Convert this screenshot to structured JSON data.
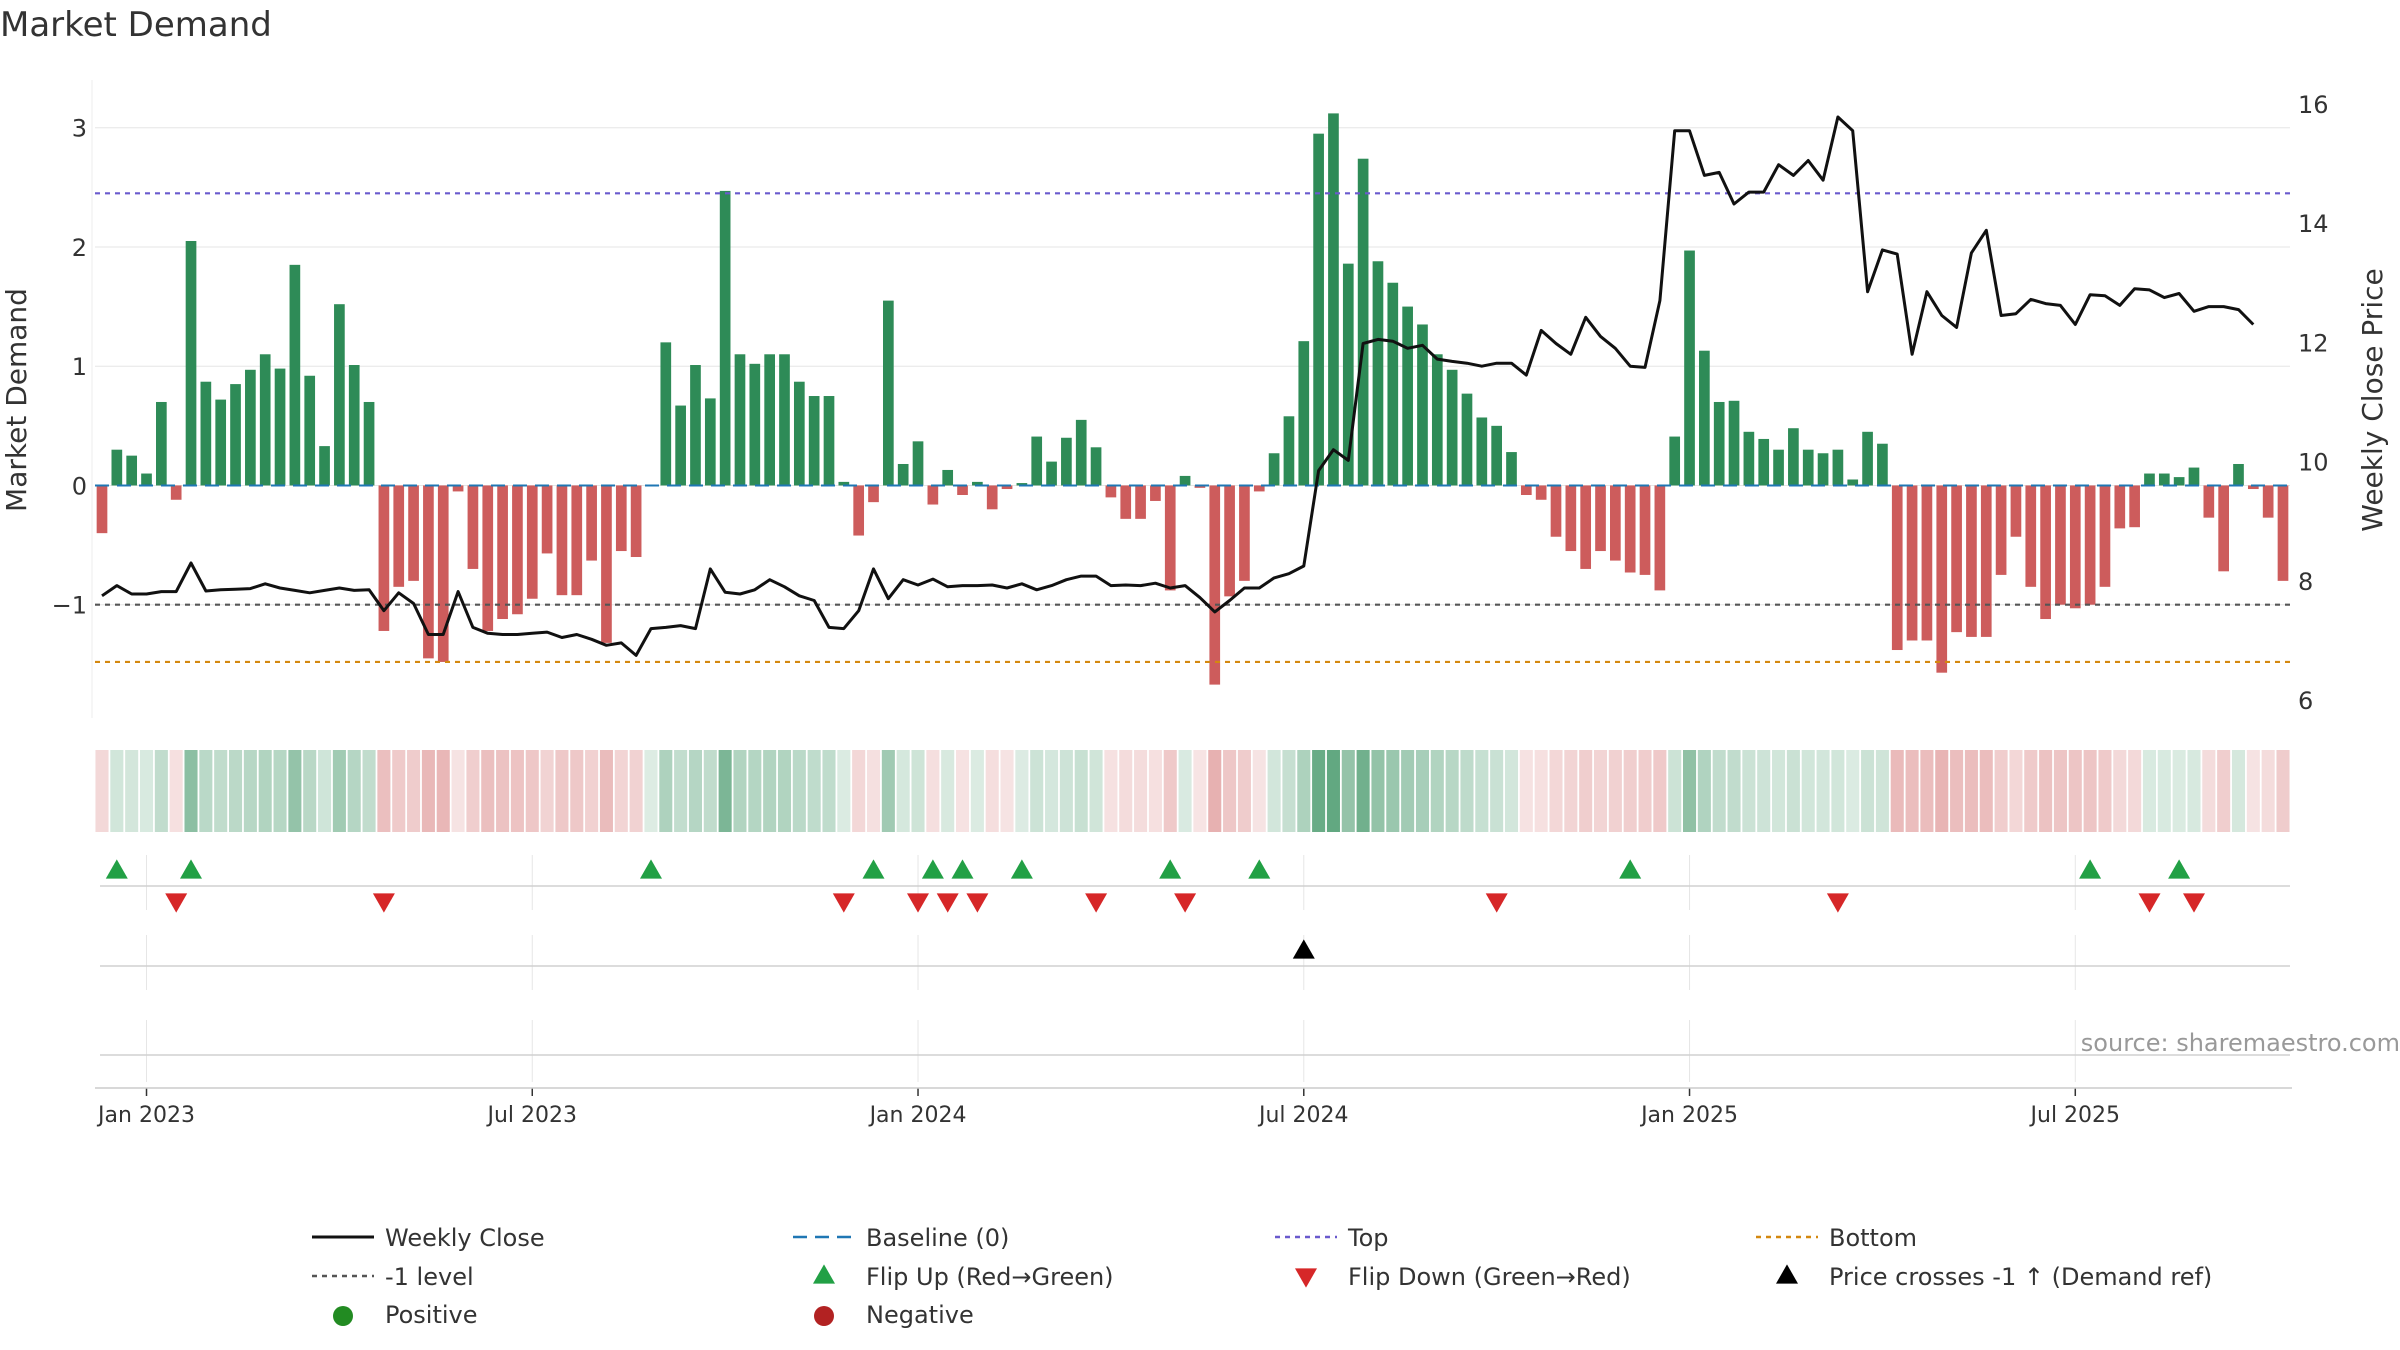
{
  "chart_data": {
    "type": "bar",
    "title": "Market Demand",
    "ylabel": "Market Demand",
    "y2label": "Weekly Close Price",
    "source": "source: sharemaestro.com",
    "ylim": [
      -1.95,
      3.4
    ],
    "y2lim": [
      5.7,
      16.4
    ],
    "yticks": [
      -1,
      0,
      1,
      2,
      3
    ],
    "ytick_labels": [
      "−1",
      "0",
      "1",
      "2",
      "3"
    ],
    "y2ticks": [
      6,
      8,
      10,
      12,
      14,
      16
    ],
    "y2tick_labels": [
      "6",
      "8",
      "10",
      "12",
      "14",
      "16"
    ],
    "xticks": [
      {
        "week": 3,
        "label": "Jan 2023"
      },
      {
        "week": 29,
        "label": "Jul 2023"
      },
      {
        "week": 55,
        "label": "Jan 2024"
      },
      {
        "week": 81,
        "label": "Jul 2024"
      },
      {
        "week": 107,
        "label": "Jan 2025"
      },
      {
        "week": 133,
        "label": "Jul 2025"
      }
    ],
    "levels": {
      "top": 2.45,
      "minus_one": -1.0,
      "bottom": -1.48
    },
    "demand": [
      -0.4,
      0.3,
      0.25,
      0.1,
      0.7,
      -0.12,
      2.05,
      0.87,
      0.72,
      0.85,
      0.97,
      1.1,
      0.98,
      1.85,
      0.92,
      0.33,
      1.52,
      1.01,
      0.7,
      -1.22,
      -0.85,
      -0.8,
      -1.45,
      -1.48,
      -0.05,
      -0.7,
      -1.22,
      -1.12,
      -1.08,
      -0.95,
      -0.57,
      -0.92,
      -0.92,
      -0.63,
      -1.32,
      -0.55,
      -0.6,
      0.0,
      1.2,
      0.67,
      1.01,
      0.73,
      2.47,
      1.1,
      1.02,
      1.1,
      1.1,
      0.87,
      0.75,
      0.75,
      0.03,
      -0.42,
      -0.14,
      1.55,
      0.18,
      0.37,
      -0.16,
      0.13,
      -0.08,
      0.03,
      -0.2,
      -0.03,
      0.02,
      0.41,
      0.2,
      0.4,
      0.55,
      0.32,
      -0.1,
      -0.28,
      -0.28,
      -0.13,
      -0.88,
      0.08,
      -0.02,
      -1.67,
      -0.93,
      -0.8,
      -0.05,
      0.27,
      0.58,
      1.21,
      2.95,
      3.12,
      1.86,
      2.74,
      1.88,
      1.7,
      1.5,
      1.35,
      1.1,
      0.97,
      0.77,
      0.57,
      0.5,
      0.28,
      -0.08,
      -0.12,
      -0.43,
      -0.55,
      -0.7,
      -0.55,
      -0.63,
      -0.73,
      -0.75,
      -0.88,
      0.41,
      1.97,
      1.13,
      0.7,
      0.71,
      0.45,
      0.39,
      0.3,
      0.48,
      0.3,
      0.27,
      0.3,
      0.05,
      0.45,
      0.35,
      -1.38,
      -1.3,
      -1.3,
      -1.57,
      -1.23,
      -1.27,
      -1.27,
      -0.75,
      -0.43,
      -0.85,
      -1.12,
      -1.0,
      -1.03,
      -1.0,
      -0.85,
      -0.36,
      -0.35,
      0.1,
      0.1,
      0.07,
      0.15,
      -0.27,
      -0.72,
      0.18,
      -0.03,
      -0.27,
      -0.8
    ],
    "close": [
      7.75,
      7.92,
      7.78,
      7.78,
      7.82,
      7.82,
      8.3,
      7.83,
      7.85,
      7.86,
      7.87,
      7.95,
      7.88,
      7.84,
      7.8,
      7.84,
      7.88,
      7.84,
      7.85,
      7.5,
      7.8,
      7.62,
      7.1,
      7.1,
      7.82,
      7.22,
      7.12,
      7.1,
      7.1,
      7.12,
      7.14,
      7.05,
      7.1,
      7.02,
      6.92,
      6.96,
      6.75,
      7.2,
      7.22,
      7.25,
      7.2,
      8.2,
      7.81,
      7.78,
      7.85,
      8.02,
      7.9,
      7.75,
      7.67,
      7.22,
      7.2,
      7.5,
      8.2,
      7.7,
      8.02,
      7.93,
      8.03,
      7.9,
      7.92,
      7.92,
      7.93,
      7.88,
      7.95,
      7.85,
      7.92,
      8.02,
      8.08,
      8.08,
      7.92,
      7.93,
      7.92,
      7.96,
      7.88,
      7.92,
      7.72,
      7.48,
      7.67,
      7.88,
      7.88,
      8.05,
      8.12,
      8.25,
      9.85,
      10.2,
      10.02,
      11.98,
      12.05,
      12.02,
      11.9,
      11.95,
      11.72,
      11.68,
      11.65,
      11.6,
      11.65,
      11.65,
      11.45,
      12.2,
      11.98,
      11.8,
      12.42,
      12.1,
      11.9,
      11.6,
      11.58,
      12.7,
      15.55,
      15.55,
      14.8,
      14.85,
      14.32,
      14.52,
      14.52,
      14.98,
      14.8,
      15.05,
      14.72,
      15.78,
      15.55,
      12.85,
      13.55,
      13.48,
      11.8,
      12.85,
      12.45,
      12.25,
      13.5,
      13.88,
      12.45,
      12.48,
      12.72,
      12.65,
      12.62,
      12.3,
      12.8,
      12.78,
      12.62,
      12.9,
      12.88,
      12.75,
      12.82,
      12.52,
      12.6,
      12.6,
      12.55,
      12.3
    ],
    "flip_up_weeks": [
      1,
      6,
      37,
      52,
      56,
      58,
      62,
      72,
      78,
      103,
      134,
      140
    ],
    "flip_down_weeks": [
      5,
      19,
      50,
      55,
      57,
      59,
      67,
      73,
      94,
      117,
      138,
      141
    ],
    "price_cross_weeks": [
      81
    ],
    "legend": [
      {
        "label": "Weekly Close",
        "style": "solid-line",
        "color": "#111111"
      },
      {
        "label": "Baseline (0)",
        "style": "dash-line",
        "color": "#1f77b4"
      },
      {
        "label": "Top",
        "style": "dot-line",
        "color": "#6a5acd"
      },
      {
        "label": "Bottom",
        "style": "dot-line",
        "color": "#d4880f"
      },
      {
        "label": "-1 level",
        "style": "dot-line",
        "color": "#555555"
      },
      {
        "label": "Flip Up (Red→Green)",
        "style": "triangle-up",
        "color": "#22a045"
      },
      {
        "label": "Flip Down (Green→Red)",
        "style": "triangle-down",
        "color": "#d62728"
      },
      {
        "label": "Price crosses -1 ↑ (Demand ref)",
        "style": "triangle-up",
        "color": "#000000"
      },
      {
        "label": "Positive",
        "style": "dot",
        "color": "#228b22"
      },
      {
        "label": "Negative",
        "style": "dot",
        "color": "#b22222"
      }
    ],
    "colors": {
      "positive": "#2e8b57",
      "negative": "#cd5c5c",
      "close": "#111111",
      "baseline": "#1f77b4",
      "top": "#6a5acd",
      "bottom": "#d4880f",
      "minus_one": "#555555",
      "grid": "#e6e6e6"
    }
  }
}
